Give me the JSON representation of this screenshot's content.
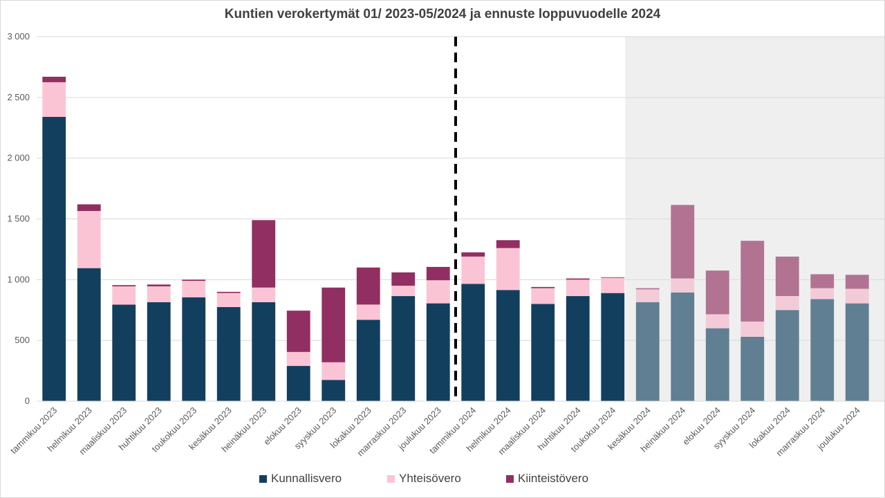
{
  "chart_data": {
    "type": "bar",
    "stacked": true,
    "title": "Kuntien verokertymät 01/ 2023-05/2024 ja ennuste loppuvuodelle  2024",
    "xlabel": "",
    "ylabel": "",
    "ylim": [
      0,
      3000
    ],
    "yticks": [
      0,
      500,
      1000,
      1500,
      2000,
      2500,
      3000
    ],
    "ytick_labels": [
      "0",
      "500",
      "1 000",
      "1 500",
      "2 000",
      "2 500",
      "3 000"
    ],
    "grid": true,
    "legend_position": "bottom",
    "categories": [
      "tammikuu 2023",
      "helmikuu 2023",
      "maaliskuu 2023",
      "huhtikuu 2023",
      "toukokuu 2023",
      "kesäkuu 2023",
      "heinäkuu 2023",
      "elokuu 2023",
      "syyskuu 2023",
      "lokakuu 2023",
      "marraskuu 2023",
      "joulukuu 2023",
      "tammikuu 2024",
      "helmikuu 2024",
      "maaliskuu 2024",
      "huhtikuu 2024",
      "toukokuu 2024",
      "kesäkuu 2024",
      "heinäkuu 2024",
      "elokuu 2024",
      "syyskuu 2024",
      "lokakuu 2024",
      "marraskuu 2024",
      "joulukuu 2024"
    ],
    "series": [
      {
        "name": "Kunnallisvero",
        "color": "#133f5f",
        "forecast_color": "#607f93",
        "values": [
          2340,
          1095,
          795,
          815,
          855,
          775,
          815,
          290,
          175,
          670,
          865,
          805,
          965,
          915,
          800,
          865,
          890,
          815,
          895,
          600,
          530,
          750,
          840,
          805
        ]
      },
      {
        "name": "Yhteisövero",
        "color": "#fbc4d5",
        "forecast_color": "#f3cbd8",
        "values": [
          285,
          470,
          150,
          130,
          135,
          115,
          120,
          115,
          145,
          125,
          85,
          190,
          225,
          345,
          130,
          135,
          125,
          105,
          115,
          115,
          125,
          115,
          90,
          120
        ]
      },
      {
        "name": "Kiinteistövero",
        "color": "#912f62",
        "forecast_color": "#b27393",
        "values": [
          45,
          55,
          10,
          15,
          10,
          10,
          555,
          340,
          615,
          305,
          110,
          110,
          35,
          65,
          10,
          10,
          5,
          10,
          605,
          360,
          665,
          325,
          115,
          115
        ]
      }
    ],
    "forecast_start_index": 17,
    "divider_after_index": 11,
    "colors": {
      "forecast_background": "#efefef",
      "gridline": "#d9d9d9",
      "divider": "#000000",
      "text": "#595959"
    }
  }
}
